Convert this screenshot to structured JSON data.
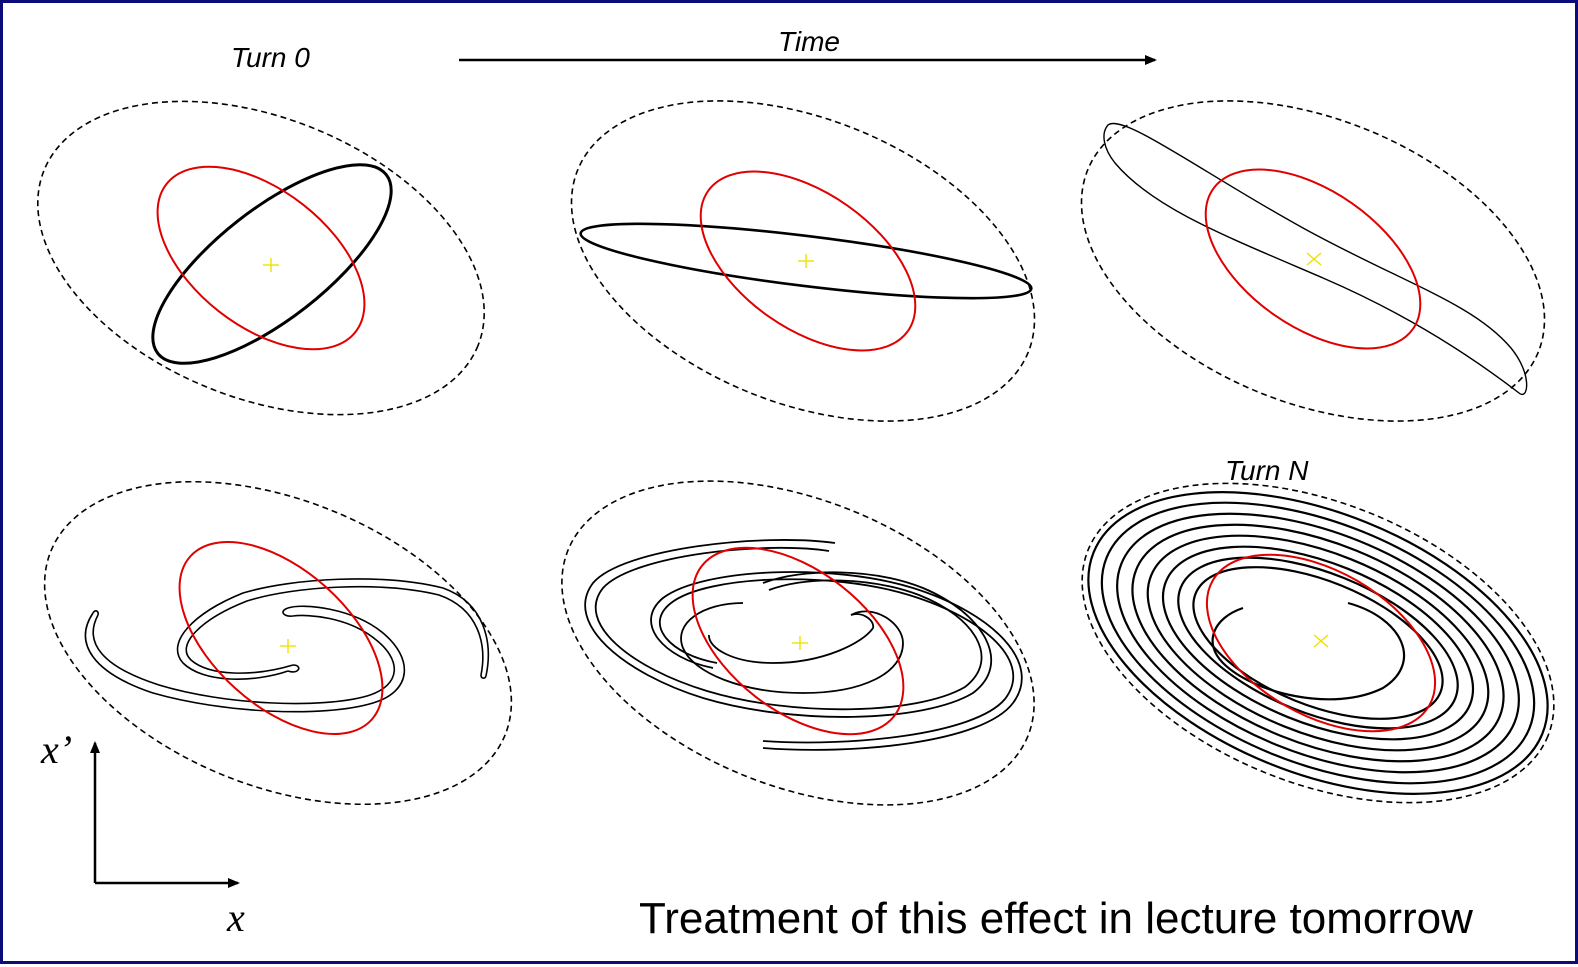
{
  "labels": {
    "turn_start": "Turn 0",
    "time": "Time",
    "turn_end": "Turn N",
    "axis_y": "x’",
    "axis_x": "x",
    "caption": "Treatment of this effect in lecture tomorrow"
  },
  "colors": {
    "border": "#0b0b7a",
    "beam": "#000000",
    "matched_ellipse": "#e00000",
    "acceptance": "#000000",
    "center_marker": "#f0e000"
  },
  "panels": [
    {
      "id": "panel-1",
      "shape": "mismatched-ellipse",
      "description": "upright tilted ellipse"
    },
    {
      "id": "panel-2",
      "shape": "flattened-ellipse"
    },
    {
      "id": "panel-3",
      "shape": "sheared-ellipse"
    },
    {
      "id": "panel-4",
      "shape": "s-shaped-filament"
    },
    {
      "id": "panel-5",
      "shape": "spiral-arms"
    },
    {
      "id": "panel-6",
      "shape": "filamented-spiral"
    }
  ]
}
